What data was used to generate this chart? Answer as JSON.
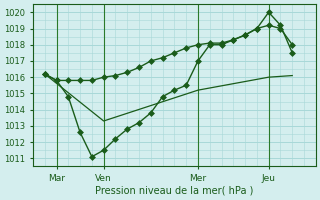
{
  "xlabel": "Pression niveau de la mer( hPa )",
  "bg_color": "#d4eeee",
  "grid_color": "#a8d8d8",
  "line_color": "#1a5c1a",
  "marker_color": "#1a5c1a",
  "vline_color": "#2a7a2a",
  "ylim": [
    1010.5,
    1020.5
  ],
  "yticks": [
    1011,
    1012,
    1013,
    1014,
    1015,
    1016,
    1017,
    1018,
    1019,
    1020
  ],
  "xtick_labels": [
    "Mar",
    "Ven",
    "Mer",
    "Jeu"
  ],
  "xtick_positions": [
    1,
    3,
    7,
    10
  ],
  "vline_positions": [
    1,
    3,
    7,
    10
  ],
  "xlim": [
    0,
    12
  ],
  "line1_x": [
    0.5,
    1.0,
    1.5,
    2.0,
    2.5,
    3.0,
    3.5,
    4.0,
    4.5,
    5.0,
    5.5,
    6.0,
    6.5,
    7.0,
    7.5,
    8.0,
    8.5,
    9.0,
    9.5,
    10.0,
    10.5,
    11.0
  ],
  "line1_y": [
    1016.2,
    1015.8,
    1015.8,
    1015.8,
    1015.8,
    1016.0,
    1016.1,
    1016.3,
    1016.6,
    1017.0,
    1017.2,
    1017.5,
    1017.8,
    1018.0,
    1018.1,
    1018.1,
    1018.3,
    1018.6,
    1019.0,
    1019.2,
    1019.0,
    1018.0
  ],
  "line2_x": [
    0.5,
    1.0,
    1.5,
    2.0,
    2.5,
    3.0,
    3.5,
    4.0,
    4.5,
    5.0,
    5.5,
    6.0,
    6.5,
    7.0,
    7.5,
    8.0,
    8.5,
    9.0,
    9.5,
    10.0,
    10.5,
    11.0
  ],
  "line2_y": [
    1016.2,
    1015.8,
    1014.8,
    1012.6,
    1011.1,
    1011.5,
    1012.2,
    1012.8,
    1013.2,
    1013.8,
    1014.8,
    1015.2,
    1015.5,
    1017.0,
    1018.0,
    1018.0,
    1018.3,
    1018.6,
    1019.0,
    1020.0,
    1019.2,
    1017.5
  ],
  "line3_x": [
    0.5,
    3.0,
    7.0,
    10.0,
    11.0
  ],
  "line3_y": [
    1016.2,
    1013.3,
    1015.2,
    1016.0,
    1016.1
  ],
  "marker": "D",
  "markersize": 3,
  "linewidth": 1.0
}
